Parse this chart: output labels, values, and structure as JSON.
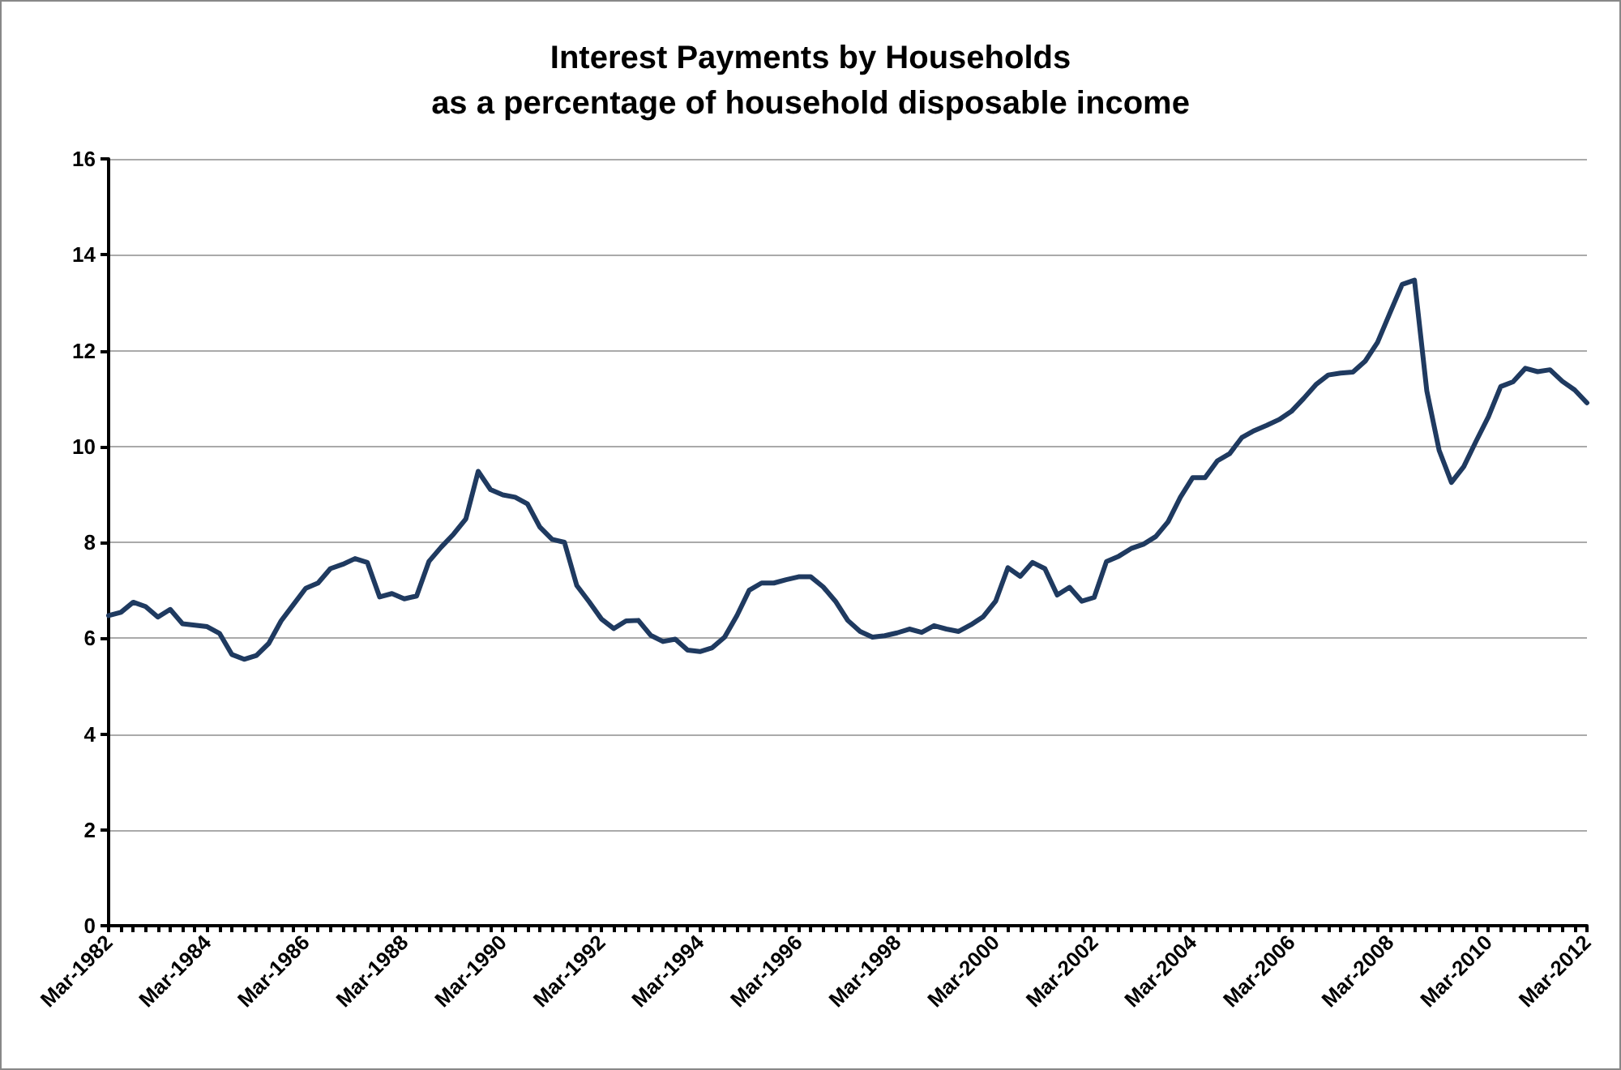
{
  "chart_data": {
    "type": "line",
    "title": "Interest Payments by Households",
    "subtitle": "as a percentage of household disposable income",
    "categories": [
      "Mar-1982",
      null,
      null,
      null,
      null,
      null,
      null,
      null,
      "Mar-1984",
      null,
      null,
      null,
      null,
      null,
      null,
      null,
      "Mar-1986",
      null,
      null,
      null,
      null,
      null,
      null,
      null,
      "Mar-1988",
      null,
      null,
      null,
      null,
      null,
      null,
      null,
      "Mar-1990",
      null,
      null,
      null,
      null,
      null,
      null,
      null,
      "Mar-1992",
      null,
      null,
      null,
      null,
      null,
      null,
      null,
      "Mar-1994",
      null,
      null,
      null,
      null,
      null,
      null,
      null,
      "Mar-1996",
      null,
      null,
      null,
      null,
      null,
      null,
      null,
      "Mar-1998",
      null,
      null,
      null,
      null,
      null,
      null,
      null,
      "Mar-2000",
      null,
      null,
      null,
      null,
      null,
      null,
      null,
      "Mar-2002",
      null,
      null,
      null,
      null,
      null,
      null,
      null,
      "Mar-2004",
      null,
      null,
      null,
      null,
      null,
      null,
      null,
      "Mar-2006",
      null,
      null,
      null,
      null,
      null,
      null,
      null,
      "Mar-2008",
      null,
      null,
      null,
      null,
      null,
      null,
      null,
      "Mar-2010",
      null,
      null,
      null,
      null,
      null,
      null,
      null,
      "Mar-2012"
    ],
    "series": [
      {
        "color": "#1f3a60",
        "values": [
          6.47,
          6.54,
          6.75,
          6.66,
          6.44,
          6.6,
          6.3,
          6.27,
          6.24,
          6.1,
          5.66,
          5.56,
          5.64,
          5.89,
          6.36,
          6.7,
          7.04,
          7.15,
          7.45,
          7.54,
          7.66,
          7.58,
          6.86,
          6.93,
          6.82,
          6.88,
          7.6,
          7.9,
          8.17,
          8.49,
          9.48,
          9.1,
          8.99,
          8.94,
          8.8,
          8.32,
          8.06,
          8.0,
          7.1,
          6.76,
          6.4,
          6.2,
          6.36,
          6.37,
          6.06,
          5.93,
          5.98,
          5.75,
          5.72,
          5.8,
          6.02,
          6.47,
          7.0,
          7.15,
          7.15,
          7.22,
          7.28,
          7.28,
          7.07,
          6.77,
          6.37,
          6.14,
          6.02,
          6.05,
          6.11,
          6.19,
          6.12,
          6.26,
          6.19,
          6.14,
          6.28,
          6.45,
          6.77,
          7.47,
          7.29,
          7.58,
          7.45,
          6.9,
          7.06,
          6.77,
          6.85,
          7.6,
          7.71,
          7.87,
          7.96,
          8.12,
          8.43,
          8.94,
          9.35,
          9.35,
          9.7,
          9.85,
          10.19,
          10.33,
          10.44,
          10.56,
          10.73,
          11.0,
          11.29,
          11.49,
          11.53,
          11.55,
          11.78,
          12.17,
          12.78,
          13.38,
          13.47,
          11.16,
          9.92,
          9.25,
          9.58,
          10.11,
          10.62,
          11.25,
          11.35,
          11.63,
          11.56,
          11.6,
          11.36,
          11.18,
          10.91
        ]
      }
    ],
    "ylim": [
      0,
      16
    ],
    "yticks": [
      0,
      2,
      4,
      6,
      8,
      10,
      12,
      14,
      16
    ],
    "grid": "y",
    "marker": "none",
    "line_style": "solid"
  }
}
